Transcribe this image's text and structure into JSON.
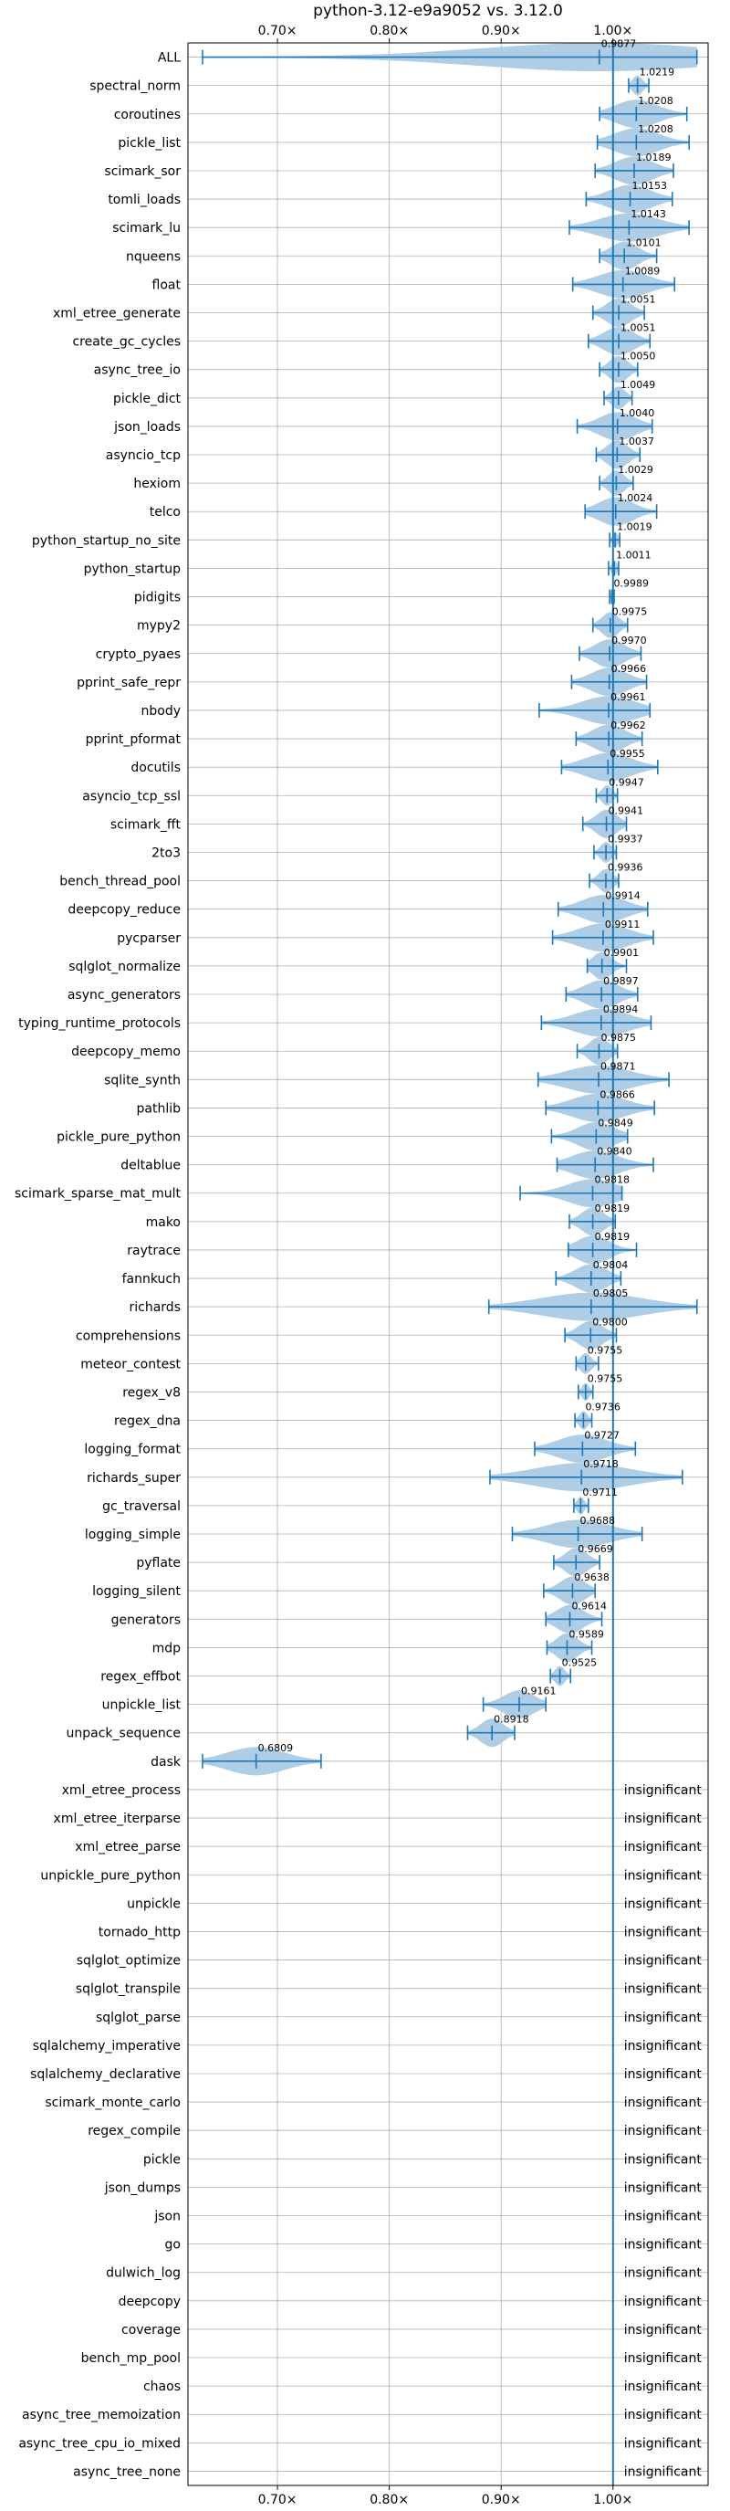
{
  "chart_data": {
    "type": "violin",
    "title": "python-3.12-e9a9052 vs. 3.12.0",
    "xlabel": "",
    "ylabel": "",
    "xlim": [
      0.62,
      1.085
    ],
    "x_ticks": [
      {
        "value": 0.7,
        "label": "0.70×"
      },
      {
        "value": 0.8,
        "label": "0.80×"
      },
      {
        "value": 0.9,
        "label": "0.90×"
      },
      {
        "value": 1.0,
        "label": "1.00×"
      }
    ],
    "grid": true,
    "reference_line": 1.0,
    "colors": {
      "accent": "#1f77b4",
      "violin": "#b0cde6",
      "grid": "#b0b0b0"
    },
    "insignificant_label": "insignificant",
    "benchmarks": [
      {
        "name": "ALL",
        "median": 0.9877,
        "min": 0.633,
        "max": 1.075,
        "label": "0.9877"
      },
      {
        "name": "spectral_norm",
        "median": 1.0219,
        "min": 1.014,
        "max": 1.032,
        "label": "1.0219"
      },
      {
        "name": "coroutines",
        "median": 1.0208,
        "min": 0.988,
        "max": 1.066,
        "label": "1.0208"
      },
      {
        "name": "pickle_list",
        "median": 1.0208,
        "min": 0.986,
        "max": 1.068,
        "label": "1.0208"
      },
      {
        "name": "scimark_sor",
        "median": 1.0189,
        "min": 0.984,
        "max": 1.054,
        "label": "1.0189"
      },
      {
        "name": "tomli_loads",
        "median": 1.0153,
        "min": 0.976,
        "max": 1.053,
        "label": "1.0153"
      },
      {
        "name": "scimark_lu",
        "median": 1.0143,
        "min": 0.961,
        "max": 1.068,
        "label": "1.0143"
      },
      {
        "name": "nqueens",
        "median": 1.0101,
        "min": 0.988,
        "max": 1.039,
        "label": "1.0101"
      },
      {
        "name": "float",
        "median": 1.0089,
        "min": 0.964,
        "max": 1.055,
        "label": "1.0089"
      },
      {
        "name": "xml_etree_generate",
        "median": 1.0051,
        "min": 0.982,
        "max": 1.028,
        "label": "1.0051"
      },
      {
        "name": "create_gc_cycles",
        "median": 1.0051,
        "min": 0.978,
        "max": 1.033,
        "label": "1.0051"
      },
      {
        "name": "async_tree_io",
        "median": 1.005,
        "min": 0.988,
        "max": 1.022,
        "label": "1.0050"
      },
      {
        "name": "pickle_dict",
        "median": 1.0049,
        "min": 0.992,
        "max": 1.017,
        "label": "1.0049"
      },
      {
        "name": "json_loads",
        "median": 1.004,
        "min": 0.968,
        "max": 1.035,
        "label": "1.0040"
      },
      {
        "name": "asyncio_tcp",
        "median": 1.0037,
        "min": 0.985,
        "max": 1.024,
        "label": "1.0037"
      },
      {
        "name": "hexiom",
        "median": 1.0029,
        "min": 0.988,
        "max": 1.018,
        "label": "1.0029"
      },
      {
        "name": "telco",
        "median": 1.0024,
        "min": 0.975,
        "max": 1.039,
        "label": "1.0024"
      },
      {
        "name": "python_startup_no_site",
        "median": 1.0019,
        "min": 0.997,
        "max": 1.006,
        "label": "1.0019"
      },
      {
        "name": "python_startup",
        "median": 1.0011,
        "min": 0.996,
        "max": 1.005,
        "label": "1.0011"
      },
      {
        "name": "pidigits",
        "median": 0.9989,
        "min": 0.997,
        "max": 1.001,
        "label": "0.9989"
      },
      {
        "name": "mypy2",
        "median": 0.9975,
        "min": 0.982,
        "max": 1.013,
        "label": "0.9975"
      },
      {
        "name": "crypto_pyaes",
        "median": 0.997,
        "min": 0.97,
        "max": 1.025,
        "label": "0.9970"
      },
      {
        "name": "pprint_safe_repr",
        "median": 0.9966,
        "min": 0.963,
        "max": 1.03,
        "label": "0.9966"
      },
      {
        "name": "nbody",
        "median": 0.9961,
        "min": 0.934,
        "max": 1.033,
        "label": "0.9961"
      },
      {
        "name": "pprint_pformat",
        "median": 0.9962,
        "min": 0.967,
        "max": 1.026,
        "label": "0.9962"
      },
      {
        "name": "docutils",
        "median": 0.9955,
        "min": 0.954,
        "max": 1.04,
        "label": "0.9955"
      },
      {
        "name": "asyncio_tcp_ssl",
        "median": 0.9947,
        "min": 0.985,
        "max": 1.004,
        "label": "0.9947"
      },
      {
        "name": "scimark_fft",
        "median": 0.9941,
        "min": 0.973,
        "max": 1.012,
        "label": "0.9941"
      },
      {
        "name": "2to3",
        "median": 0.9937,
        "min": 0.983,
        "max": 1.003,
        "label": "0.9937"
      },
      {
        "name": "bench_thread_pool",
        "median": 0.9936,
        "min": 0.979,
        "max": 1.005,
        "label": "0.9936"
      },
      {
        "name": "deepcopy_reduce",
        "median": 0.9914,
        "min": 0.951,
        "max": 1.031,
        "label": "0.9914"
      },
      {
        "name": "pycparser",
        "median": 0.9911,
        "min": 0.946,
        "max": 1.036,
        "label": "0.9911"
      },
      {
        "name": "sqlglot_normalize",
        "median": 0.9901,
        "min": 0.977,
        "max": 1.012,
        "label": "0.9901"
      },
      {
        "name": "async_generators",
        "median": 0.9897,
        "min": 0.958,
        "max": 1.022,
        "label": "0.9897"
      },
      {
        "name": "typing_runtime_protocols",
        "median": 0.9894,
        "min": 0.936,
        "max": 1.034,
        "label": "0.9894"
      },
      {
        "name": "deepcopy_memo",
        "median": 0.9875,
        "min": 0.968,
        "max": 1.004,
        "label": "0.9875"
      },
      {
        "name": "sqlite_synth",
        "median": 0.9871,
        "min": 0.933,
        "max": 1.05,
        "label": "0.9871"
      },
      {
        "name": "pathlib",
        "median": 0.9866,
        "min": 0.94,
        "max": 1.037,
        "label": "0.9866"
      },
      {
        "name": "pickle_pure_python",
        "median": 0.9849,
        "min": 0.945,
        "max": 1.013,
        "label": "0.9849"
      },
      {
        "name": "deltablue",
        "median": 0.984,
        "min": 0.95,
        "max": 1.036,
        "label": "0.9840"
      },
      {
        "name": "scimark_sparse_mat_mult",
        "median": 0.9818,
        "min": 0.917,
        "max": 1.008,
        "label": "0.9818"
      },
      {
        "name": "mako",
        "median": 0.9819,
        "min": 0.961,
        "max": 1.002,
        "label": "0.9819"
      },
      {
        "name": "raytrace",
        "median": 0.9819,
        "min": 0.96,
        "max": 1.021,
        "label": "0.9819"
      },
      {
        "name": "fannkuch",
        "median": 0.9804,
        "min": 0.949,
        "max": 1.007,
        "label": "0.9804"
      },
      {
        "name": "richards",
        "median": 0.9805,
        "min": 0.889,
        "max": 1.075,
        "label": "0.9805"
      },
      {
        "name": "comprehensions",
        "median": 0.98,
        "min": 0.957,
        "max": 1.003,
        "label": "0.9800"
      },
      {
        "name": "meteor_contest",
        "median": 0.9755,
        "min": 0.967,
        "max": 0.987,
        "label": "0.9755"
      },
      {
        "name": "regex_v8",
        "median": 0.9755,
        "min": 0.969,
        "max": 0.982,
        "label": "0.9755"
      },
      {
        "name": "regex_dna",
        "median": 0.9736,
        "min": 0.966,
        "max": 0.981,
        "label": "0.9736"
      },
      {
        "name": "logging_format",
        "median": 0.9727,
        "min": 0.93,
        "max": 1.02,
        "label": "0.9727"
      },
      {
        "name": "richards_super",
        "median": 0.9718,
        "min": 0.89,
        "max": 1.062,
        "label": "0.9718"
      },
      {
        "name": "gc_traversal",
        "median": 0.9711,
        "min": 0.965,
        "max": 0.978,
        "label": "0.9711"
      },
      {
        "name": "logging_simple",
        "median": 0.9688,
        "min": 0.91,
        "max": 1.026,
        "label": "0.9688"
      },
      {
        "name": "pyflate",
        "median": 0.9669,
        "min": 0.947,
        "max": 0.988,
        "label": "0.9669"
      },
      {
        "name": "logging_silent",
        "median": 0.9638,
        "min": 0.938,
        "max": 0.984,
        "label": "0.9638"
      },
      {
        "name": "generators",
        "median": 0.9614,
        "min": 0.94,
        "max": 0.99,
        "label": "0.9614"
      },
      {
        "name": "mdp",
        "median": 0.9589,
        "min": 0.941,
        "max": 0.981,
        "label": "0.9589"
      },
      {
        "name": "regex_effbot",
        "median": 0.9525,
        "min": 0.944,
        "max": 0.962,
        "label": "0.9525"
      },
      {
        "name": "unpickle_list",
        "median": 0.9161,
        "min": 0.884,
        "max": 0.94,
        "label": "0.9161"
      },
      {
        "name": "unpack_sequence",
        "median": 0.8918,
        "min": 0.87,
        "max": 0.912,
        "label": "0.8918"
      },
      {
        "name": "dask",
        "median": 0.6809,
        "min": 0.633,
        "max": 0.739,
        "label": "0.6809"
      },
      {
        "name": "xml_etree_process",
        "insignificant": true
      },
      {
        "name": "xml_etree_iterparse",
        "insignificant": true
      },
      {
        "name": "xml_etree_parse",
        "insignificant": true
      },
      {
        "name": "unpickle_pure_python",
        "insignificant": true
      },
      {
        "name": "unpickle",
        "insignificant": true
      },
      {
        "name": "tornado_http",
        "insignificant": true
      },
      {
        "name": "sqlglot_optimize",
        "insignificant": true
      },
      {
        "name": "sqlglot_transpile",
        "insignificant": true
      },
      {
        "name": "sqlglot_parse",
        "insignificant": true
      },
      {
        "name": "sqlalchemy_imperative",
        "insignificant": true
      },
      {
        "name": "sqlalchemy_declarative",
        "insignificant": true
      },
      {
        "name": "scimark_monte_carlo",
        "insignificant": true
      },
      {
        "name": "regex_compile",
        "insignificant": true
      },
      {
        "name": "pickle",
        "insignificant": true
      },
      {
        "name": "json_dumps",
        "insignificant": true
      },
      {
        "name": "json",
        "insignificant": true
      },
      {
        "name": "go",
        "insignificant": true
      },
      {
        "name": "dulwich_log",
        "insignificant": true
      },
      {
        "name": "deepcopy",
        "insignificant": true
      },
      {
        "name": "coverage",
        "insignificant": true
      },
      {
        "name": "bench_mp_pool",
        "insignificant": true
      },
      {
        "name": "chaos",
        "insignificant": true
      },
      {
        "name": "async_tree_memoization",
        "insignificant": true
      },
      {
        "name": "async_tree_cpu_io_mixed",
        "insignificant": true
      },
      {
        "name": "async_tree_none",
        "insignificant": true
      }
    ]
  }
}
